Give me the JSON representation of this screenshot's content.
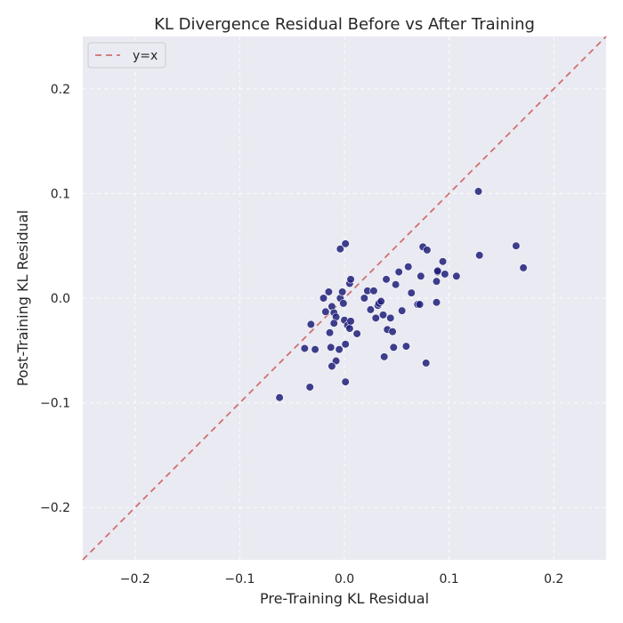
{
  "chart_data": {
    "type": "scatter",
    "title": "KL Divergence Residual Before vs After Training",
    "xlabel": "Pre-Training KL Residual",
    "ylabel": "Post-Training KL Residual",
    "xlim": [
      -0.25,
      0.25
    ],
    "ylim": [
      -0.25,
      0.25
    ],
    "xticks": [
      -0.2,
      -0.1,
      0.0,
      0.1,
      0.2
    ],
    "yticks": [
      -0.2,
      -0.1,
      0.0,
      0.1,
      0.2
    ],
    "xtick_labels": [
      "−0.2",
      "−0.1",
      "0.0",
      "0.1",
      "0.2"
    ],
    "ytick_labels": [
      "−0.2",
      "−0.1",
      "0.0",
      "0.1",
      "0.2"
    ],
    "grid": true,
    "legend": {
      "placement": "top-left",
      "entries": [
        {
          "label": "y=x",
          "style": "dashed-line"
        }
      ]
    },
    "reference_line": {
      "label": "y=x",
      "color": "#d07070"
    },
    "point_color": "#1f1f7a",
    "points": [
      [
        -0.062,
        -0.095
      ],
      [
        -0.033,
        -0.085
      ],
      [
        -0.038,
        -0.048
      ],
      [
        -0.028,
        -0.049
      ],
      [
        -0.032,
        -0.025
      ],
      [
        -0.02,
        0.0
      ],
      [
        -0.018,
        -0.013
      ],
      [
        -0.015,
        0.006
      ],
      [
        -0.012,
        -0.008
      ],
      [
        -0.01,
        -0.014
      ],
      [
        -0.008,
        -0.018
      ],
      [
        -0.01,
        -0.024
      ],
      [
        -0.014,
        -0.033
      ],
      [
        -0.013,
        -0.047
      ],
      [
        -0.008,
        -0.06
      ],
      [
        -0.012,
        -0.065
      ],
      [
        -0.005,
        -0.049
      ],
      [
        -0.004,
        0.0
      ],
      [
        -0.002,
        0.006
      ],
      [
        -0.001,
        -0.005
      ],
      [
        0.0,
        -0.021
      ],
      [
        0.003,
        -0.026
      ],
      [
        0.005,
        -0.029
      ],
      [
        0.006,
        -0.022
      ],
      [
        0.005,
        0.014
      ],
      [
        0.006,
        0.018
      ],
      [
        -0.004,
        0.047
      ],
      [
        0.001,
        0.052
      ],
      [
        0.001,
        -0.044
      ],
      [
        0.001,
        -0.08
      ],
      [
        0.012,
        -0.034
      ],
      [
        0.019,
        0.0
      ],
      [
        0.022,
        0.007
      ],
      [
        0.028,
        0.007
      ],
      [
        0.025,
        -0.011
      ],
      [
        0.03,
        -0.019
      ],
      [
        0.032,
        -0.007
      ],
      [
        0.033,
        -0.005
      ],
      [
        0.035,
        -0.003
      ],
      [
        0.037,
        -0.016
      ],
      [
        0.038,
        -0.056
      ],
      [
        0.04,
        0.018
      ],
      [
        0.041,
        -0.03
      ],
      [
        0.044,
        -0.019
      ],
      [
        0.046,
        -0.032
      ],
      [
        0.047,
        -0.047
      ],
      [
        0.049,
        0.013
      ],
      [
        0.052,
        0.025
      ],
      [
        0.055,
        -0.012
      ],
      [
        0.059,
        -0.046
      ],
      [
        0.061,
        0.03
      ],
      [
        0.064,
        0.005
      ],
      [
        0.07,
        -0.006
      ],
      [
        0.072,
        -0.006
      ],
      [
        0.073,
        0.021
      ],
      [
        0.075,
        0.049
      ],
      [
        0.079,
        0.046
      ],
      [
        0.078,
        -0.062
      ],
      [
        0.088,
        -0.004
      ],
      [
        0.088,
        0.016
      ],
      [
        0.089,
        0.025
      ],
      [
        0.089,
        0.026
      ],
      [
        0.094,
        0.035
      ],
      [
        0.096,
        0.023
      ],
      [
        0.107,
        0.021
      ],
      [
        0.128,
        0.102
      ],
      [
        0.129,
        0.041
      ],
      [
        0.164,
        0.05
      ],
      [
        0.171,
        0.029
      ]
    ]
  }
}
